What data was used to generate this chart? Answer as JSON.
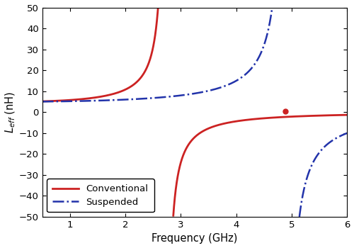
{
  "xlabel": "Frequency (GHz)",
  "ylabel": "$L_{eff}$ (nH)",
  "xlim": [
    0.5,
    6.0
  ],
  "ylim": [
    -50,
    50
  ],
  "yticks": [
    -50,
    -40,
    -30,
    -20,
    -10,
    0,
    10,
    20,
    30,
    40,
    50
  ],
  "xticks": [
    1,
    2,
    3,
    4,
    5,
    6
  ],
  "conventional_color": "#cc2222",
  "suspended_color": "#2233aa",
  "conventional_srf": 2.73,
  "suspended_srf": 4.9,
  "L0_conv": 5.0,
  "L0_susp": 5.0,
  "legend_loc": "lower left",
  "background_color": "#ffffff",
  "marker_freq": 4.88,
  "marker_val": 0.5
}
